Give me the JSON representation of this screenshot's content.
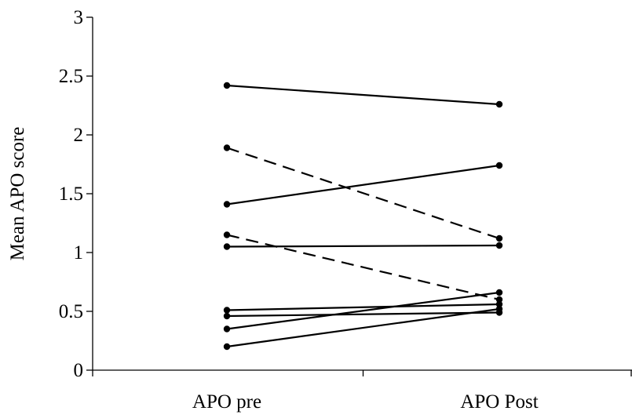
{
  "chart_data": {
    "type": "line",
    "categories": [
      "APO pre",
      "APO Post"
    ],
    "ylabel": "Mean APO score",
    "xlabel": "",
    "title": "",
    "ylim": [
      0,
      3
    ],
    "yticks": [
      "0",
      "0.5",
      "1",
      "1.5",
      "2",
      "2.5",
      "3"
    ],
    "grid": false,
    "legend": "none",
    "series": [
      {
        "values": [
          2.42,
          2.26
        ],
        "style": "solid"
      },
      {
        "values": [
          1.89,
          1.12
        ],
        "style": "dashed"
      },
      {
        "values": [
          1.41,
          1.74
        ],
        "style": "solid"
      },
      {
        "values": [
          1.15,
          0.6
        ],
        "style": "dashed"
      },
      {
        "values": [
          1.05,
          1.06
        ],
        "style": "solid"
      },
      {
        "values": [
          0.51,
          0.56
        ],
        "style": "solid"
      },
      {
        "values": [
          0.46,
          0.49
        ],
        "style": "solid"
      },
      {
        "values": [
          0.35,
          0.66
        ],
        "style": "solid"
      },
      {
        "values": [
          0.2,
          0.52
        ],
        "style": "solid"
      }
    ],
    "colors": {
      "line": "#000000",
      "marker": "#000000"
    }
  }
}
